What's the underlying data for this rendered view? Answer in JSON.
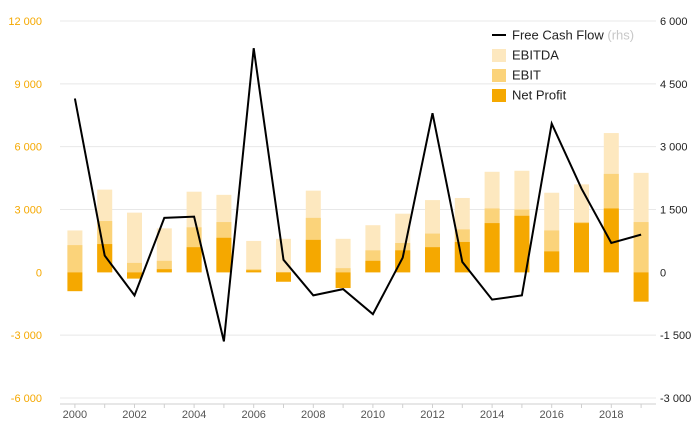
{
  "chart_data": {
    "type": "bar",
    "x": [
      2000,
      2001,
      2002,
      2003,
      2004,
      2005,
      2006,
      2007,
      2008,
      2009,
      2010,
      2011,
      2012,
      2013,
      2014,
      2015,
      2016,
      2017,
      2018,
      2019
    ],
    "x_tick_labels": [
      "2000",
      "2002",
      "2004",
      "2006",
      "2008",
      "2010",
      "2012",
      "2014",
      "2016",
      "2018"
    ],
    "series": [
      {
        "name": "EBITDA",
        "axis": "left",
        "kind": "bar",
        "color": "#fde8bf",
        "values": [
          2000,
          3950,
          2850,
          2100,
          3850,
          3700,
          1500,
          1600,
          3900,
          1600,
          2250,
          2800,
          3450,
          3550,
          4800,
          4850,
          3800,
          4200,
          6650,
          4750
        ]
      },
      {
        "name": "EBIT",
        "axis": "left",
        "kind": "bar",
        "color": "#fbd37a",
        "values": [
          1300,
          2450,
          450,
          550,
          2150,
          2400,
          150,
          -200,
          2600,
          200,
          1050,
          1400,
          1850,
          2050,
          3050,
          3000,
          2000,
          2400,
          4700,
          2400
        ]
      },
      {
        "name": "Net Profit",
        "axis": "left",
        "kind": "bar",
        "color": "#f5a800",
        "values": [
          -900,
          1350,
          -300,
          150,
          1200,
          1650,
          100,
          -450,
          1550,
          -750,
          550,
          1050,
          1200,
          1450,
          2350,
          2700,
          1000,
          2350,
          3050,
          -1400
        ]
      },
      {
        "name": "Free Cash Flow",
        "name_suffix": "(rhs)",
        "axis": "right",
        "kind": "line",
        "color": "#000000",
        "values": [
          4150,
          400,
          -550,
          1300,
          1330,
          -1650,
          5350,
          300,
          -550,
          -400,
          -1000,
          350,
          3800,
          250,
          -650,
          -550,
          3550,
          2000,
          700,
          900
        ]
      }
    ],
    "left_axis": {
      "ylim": [
        -6000,
        12000
      ],
      "ticks": [
        -6000,
        -3000,
        0,
        3000,
        6000,
        9000,
        12000
      ],
      "tick_labels": [
        "-6 000",
        "-3 000",
        "0",
        "3 000",
        "6 000",
        "9 000",
        "12 000"
      ],
      "color": "#f5a800"
    },
    "right_axis": {
      "ylim": [
        -3000,
        6000
      ],
      "ticks": [
        -3000,
        -1500,
        0,
        1500,
        3000,
        4500,
        6000
      ],
      "tick_labels": [
        "-3 000",
        "-1 500",
        "0",
        "1 500",
        "3 000",
        "4 500",
        "6 000"
      ],
      "color": "#222222"
    },
    "xlim": [
      1999.5,
      2019.5
    ],
    "grid": true,
    "legend_position": "top-right"
  }
}
